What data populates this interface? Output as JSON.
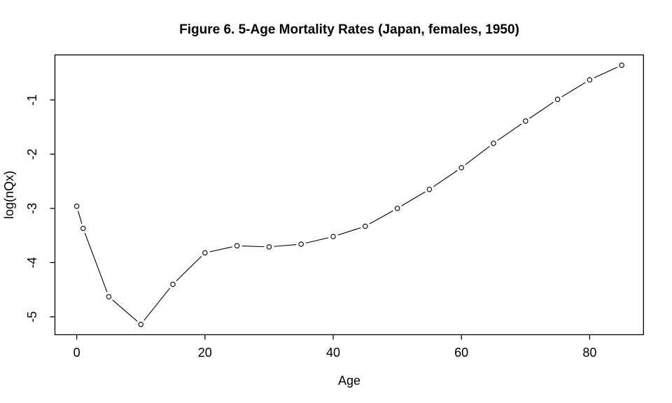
{
  "chart_data": {
    "type": "line",
    "title": "Figure 6. 5-Age Mortality Rates (Japan, females, 1950)",
    "xlabel": "Age",
    "ylabel": "log(nQx)",
    "series": [
      {
        "name": "log(nQx)",
        "x": [
          0,
          1,
          5,
          10,
          15,
          20,
          25,
          30,
          35,
          40,
          45,
          50,
          55,
          60,
          65,
          70,
          75,
          80,
          85
        ],
        "y": [
          -2.96,
          -3.37,
          -4.63,
          -5.14,
          -4.4,
          -3.82,
          -3.69,
          -3.71,
          -3.66,
          -3.52,
          -3.33,
          -3.0,
          -2.65,
          -2.25,
          -1.8,
          -1.39,
          -0.99,
          -0.63,
          -0.36
        ]
      }
    ],
    "marker": "open-circle",
    "line_style": "segments-with-gaps",
    "xticks": [
      0,
      20,
      40,
      60,
      80
    ],
    "yticks": [
      -1,
      -2,
      -3,
      -4,
      -5
    ],
    "xlim": [
      -3.4,
      88.4
    ],
    "ylim": [
      -5.33,
      -0.17
    ],
    "grid": false,
    "legend": "none",
    "colors": {
      "foreground": "#000000",
      "background": "#ffffff"
    }
  }
}
